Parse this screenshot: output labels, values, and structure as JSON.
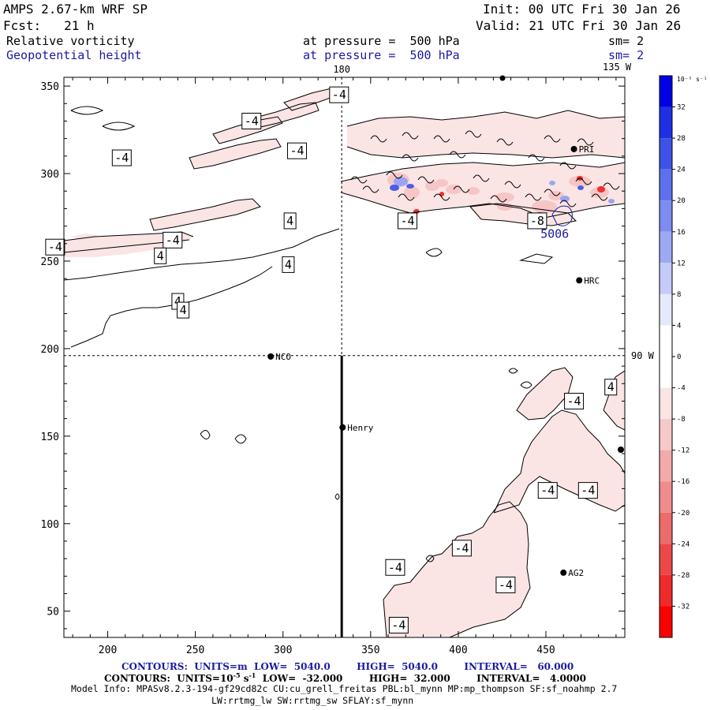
{
  "header": {
    "model": "AMPS 2.67-km WRF SP",
    "init": "Init: 00 UTC Fri 30 Jan 26",
    "fcst": "Fcst:   21 h",
    "valid": "Valid: 21 UTC Fri 30 Jan 26",
    "field1": "Relative vorticity",
    "field1_level": "at pressure =  500 hPa",
    "field1_sm": "sm= 2",
    "field2": "Geopotential height",
    "field2_level": "at pressure =  500 hPa",
    "field2_sm": "sm= 2"
  },
  "footer": {
    "contours_height": "CONTOURS:  UNITS=m  LOW=  5040.0        HIGH=  5040.0        INTERVAL=   60.000",
    "contours_vort_prefix": "CONTOURS:  UNITS=10",
    "contours_vort_exp": "-5",
    "contours_vort_unit": " s",
    "contours_vort_unit_exp": "-1",
    "contours_vort_rest": "  LOW=  -32.000        HIGH=  32.000        INTERVAL=   4.0000",
    "model_info": "Model Info: MPASv8.2.3-194-gf29cd82c CU:cu_grell_freitas PBL:bl_mynn MP:mp_thompson SF:sf_noahmp 2.7",
    "model_info2": "LW:rrtmg_lw SW:rrtmg_sw SFLAY:sf_mynn"
  },
  "chart_data": {
    "type": "contour",
    "title": "Relative vorticity / Geopotential height at 500 hPa",
    "xlim": [
      175,
      495
    ],
    "ylim": [
      35,
      355
    ],
    "xticks": [
      200,
      250,
      300,
      350,
      400,
      450
    ],
    "yticks": [
      50,
      100,
      150,
      200,
      250,
      300,
      350
    ],
    "grid_lines": [
      {
        "label": "180",
        "orientation": "vertical",
        "x": 333.5
      },
      {
        "label": "90 W",
        "orientation": "horizontal",
        "y": 196
      },
      {
        "label": "135 W",
        "orientation": "corner"
      }
    ],
    "stations": [
      {
        "name": "NCO",
        "x": 293,
        "y": 195.5
      },
      {
        "name": "Henry",
        "x": 334,
        "y": 155
      },
      {
        "name": "HRC",
        "x": 469,
        "y": 239
      },
      {
        "name": "AG2",
        "x": 460,
        "y": 72
      },
      {
        "name": "PRI",
        "x": 466,
        "y": 314
      }
    ],
    "track": {
      "x": 333.5,
      "y_from": 196,
      "y_to": 35
    },
    "contour_labels": [
      {
        "text": "-4",
        "x": 332,
        "y": 345
      },
      {
        "text": "-4",
        "x": 282,
        "y": 330
      },
      {
        "text": "-4",
        "x": 308,
        "y": 313
      },
      {
        "text": "-4",
        "x": 208,
        "y": 309
      },
      {
        "text": "4",
        "x": 304,
        "y": 273
      },
      {
        "text": "-4",
        "x": 237,
        "y": 262
      },
      {
        "text": "-4",
        "x": 170,
        "y": 258
      },
      {
        "text": "4",
        "x": 230,
        "y": 253
      },
      {
        "text": "4",
        "x": 303,
        "y": 248
      },
      {
        "text": "4",
        "x": 240,
        "y": 227
      },
      {
        "text": "4",
        "x": 243,
        "y": 222
      },
      {
        "text": "-4",
        "x": 371,
        "y": 273
      },
      {
        "text": "-8",
        "x": 445,
        "y": 273
      },
      {
        "text": "4",
        "x": 487,
        "y": 178
      },
      {
        "text": "-4",
        "x": 466,
        "y": 170
      },
      {
        "text": "-4",
        "x": 451,
        "y": 119
      },
      {
        "text": "-4",
        "x": 474,
        "y": 119
      },
      {
        "text": "-4",
        "x": 402,
        "y": 86
      },
      {
        "text": "-4",
        "x": 364,
        "y": 75
      },
      {
        "text": "-4",
        "x": 427,
        "y": 65
      },
      {
        "text": "-4",
        "x": 366,
        "y": 42
      }
    ],
    "height_label": {
      "text": "5006",
      "x": 455,
      "y": 266
    },
    "colorbar": {
      "unit_label": "10⁻⁵ s⁻¹",
      "levels": [
        32,
        28,
        24,
        20,
        16,
        12,
        8,
        4,
        0,
        -4,
        -8,
        -12,
        -16,
        -20,
        -24,
        -28,
        -32
      ],
      "colors": [
        "#0000e6",
        "#1f2fe6",
        "#3f52e6",
        "#5c71eb",
        "#7c8cf0",
        "#9ea9f4",
        "#c4cbf8",
        "#e6e9fc",
        "#ffffff",
        "#ffffff",
        "#fbe4e4",
        "#f7c8c8",
        "#f3aaaa",
        "#f08c8c",
        "#ec6b6b",
        "#ec4848",
        "#f02a2a",
        "#ff0000"
      ]
    }
  }
}
